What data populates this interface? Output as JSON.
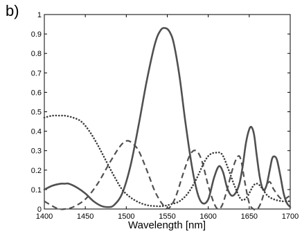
{
  "figure_label": "b)",
  "chart_data": {
    "type": "line",
    "title": "",
    "xlabel": "Wavelength [nm]",
    "ylabel": "",
    "xlim": [
      1400,
      1700
    ],
    "ylim": [
      0,
      1
    ],
    "xticks": [
      "1400",
      "1450",
      "1500",
      "1550",
      "1600",
      "1650",
      "1700"
    ],
    "yticks": [
      "0",
      "0.1",
      "0.2",
      "0.3",
      "0.4",
      "0.5",
      "0.6",
      "0.7",
      "0.8",
      "0.9",
      "1"
    ],
    "grid": false,
    "series": [
      {
        "style": "solid",
        "x": [
          1400,
          1410,
          1420,
          1425,
          1430,
          1440,
          1450,
          1460,
          1470,
          1478,
          1485,
          1495,
          1505,
          1515,
          1525,
          1535,
          1542,
          1548,
          1553,
          1558,
          1565,
          1572,
          1580,
          1587,
          1593,
          1600,
          1607,
          1613,
          1618,
          1623,
          1628,
          1633,
          1638,
          1642,
          1646,
          1650,
          1653,
          1656,
          1659,
          1663,
          1667,
          1671,
          1675,
          1678,
          1681,
          1684,
          1688,
          1692,
          1696,
          1700
        ],
        "y": [
          0.1,
          0.12,
          0.13,
          0.13,
          0.13,
          0.11,
          0.08,
          0.04,
          0.015,
          0.01,
          0.02,
          0.08,
          0.22,
          0.43,
          0.66,
          0.85,
          0.92,
          0.93,
          0.91,
          0.85,
          0.68,
          0.45,
          0.22,
          0.08,
          0.03,
          0.05,
          0.16,
          0.22,
          0.19,
          0.11,
          0.07,
          0.08,
          0.13,
          0.22,
          0.34,
          0.41,
          0.42,
          0.38,
          0.28,
          0.16,
          0.1,
          0.12,
          0.2,
          0.26,
          0.27,
          0.25,
          0.17,
          0.08,
          0.03,
          0.01
        ]
      },
      {
        "style": "dashed",
        "x": [
          1400,
          1410,
          1418,
          1425,
          1435,
          1450,
          1465,
          1480,
          1492,
          1500,
          1507,
          1515,
          1525,
          1535,
          1545,
          1552,
          1560,
          1570,
          1578,
          1585,
          1592,
          1600,
          1607,
          1612,
          1617,
          1623,
          1630,
          1636,
          1640,
          1645,
          1650,
          1655,
          1660,
          1665,
          1670,
          1675,
          1680,
          1690,
          1700
        ],
        "y": [
          0.04,
          0.015,
          0.0,
          0.0,
          0.01,
          0.05,
          0.13,
          0.24,
          0.32,
          0.35,
          0.34,
          0.3,
          0.2,
          0.09,
          0.02,
          0.005,
          0.06,
          0.19,
          0.28,
          0.3,
          0.25,
          0.12,
          0.03,
          0.0,
          0.02,
          0.1,
          0.21,
          0.27,
          0.25,
          0.13,
          0.03,
          0.0,
          0.0,
          0.04,
          0.11,
          0.14,
          0.1,
          0.05,
          0.07
        ]
      },
      {
        "style": "dotted",
        "x": [
          1400,
          1410,
          1420,
          1425,
          1435,
          1445,
          1455,
          1465,
          1475,
          1485,
          1495,
          1505,
          1515,
          1525,
          1535,
          1545,
          1555,
          1565,
          1575,
          1585,
          1595,
          1602,
          1610,
          1617,
          1625,
          1632,
          1640,
          1647,
          1655,
          1660,
          1665,
          1672,
          1680,
          1690,
          1700
        ],
        "y": [
          0.47,
          0.48,
          0.48,
          0.48,
          0.47,
          0.45,
          0.4,
          0.33,
          0.25,
          0.17,
          0.1,
          0.06,
          0.035,
          0.02,
          0.015,
          0.015,
          0.025,
          0.04,
          0.08,
          0.15,
          0.24,
          0.28,
          0.29,
          0.28,
          0.2,
          0.12,
          0.05,
          0.06,
          0.12,
          0.13,
          0.11,
          0.07,
          0.05,
          0.04,
          0.04
        ]
      }
    ]
  }
}
